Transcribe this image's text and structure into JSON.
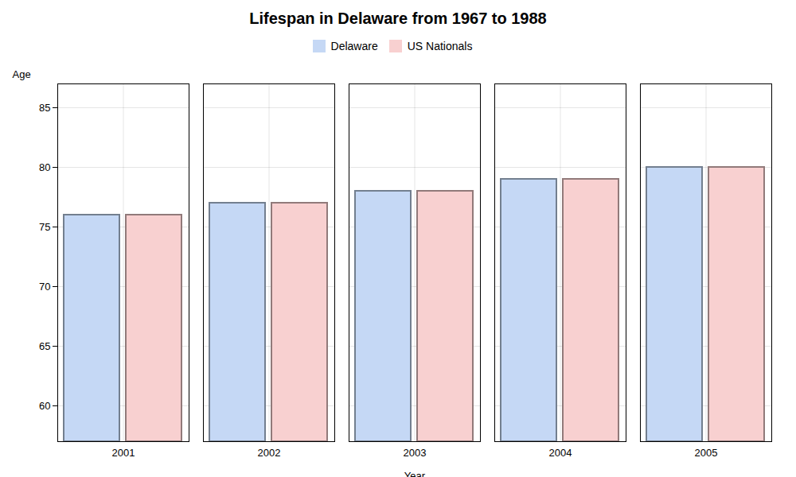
{
  "chart_data": {
    "type": "bar",
    "title": "Lifespan in Delaware from 1967 to 1988",
    "xlabel": "Year",
    "ylabel": "Age",
    "categories": [
      "2001",
      "2002",
      "2003",
      "2004",
      "2005"
    ],
    "series": [
      {
        "name": "Delaware",
        "color": "#c5d8f5",
        "values": [
          76,
          77,
          78,
          79,
          80
        ]
      },
      {
        "name": "US Nationals",
        "color": "#f8d0d0",
        "values": [
          76,
          77,
          78,
          79,
          80
        ]
      }
    ],
    "ylim": [
      57,
      87
    ],
    "yticks": [
      60,
      65,
      70,
      75,
      80,
      85
    ],
    "grid": true,
    "legend": "top"
  }
}
